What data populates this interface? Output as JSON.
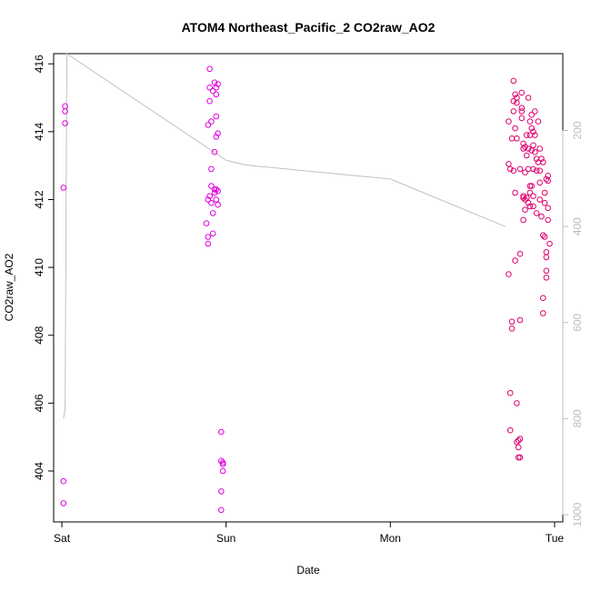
{
  "chart_data": {
    "type": "scatter",
    "title": "ATOM4 Northeast_Pacific_2 CO2raw_AO2",
    "xlabel": "Date",
    "ylabel": "CO2raw_AO2",
    "x_ticks": [
      "Sat",
      "Sun",
      "Mon",
      "Tue"
    ],
    "x_tick_values": [
      0,
      1,
      2,
      3
    ],
    "xlim": [
      -0.05,
      3.05
    ],
    "ylim": [
      402.5,
      416.3
    ],
    "y_ticks": [
      404,
      406,
      408,
      410,
      412,
      414,
      416
    ],
    "y2_ticks": [
      200,
      400,
      600,
      800,
      1000
    ],
    "y2lim": [
      1015,
      40
    ],
    "colors": {
      "points_early": "#e000e0",
      "points_late": "#e00070",
      "line": "#c0c0c0"
    },
    "series_points": [
      [
        0.01,
        403.05
      ],
      [
        0.01,
        403.7
      ],
      [
        0.01,
        412.35
      ],
      [
        0.02,
        414.25
      ],
      [
        0.02,
        414.6
      ],
      [
        0.02,
        414.75
      ],
      [
        0.88,
        411.3
      ],
      [
        0.89,
        410.7
      ],
      [
        0.89,
        410.9
      ],
      [
        0.89,
        412.0
      ],
      [
        0.89,
        414.2
      ],
      [
        0.9,
        414.9
      ],
      [
        0.9,
        415.3
      ],
      [
        0.9,
        415.85
      ],
      [
        0.9,
        412.1
      ],
      [
        0.91,
        414.3
      ],
      [
        0.91,
        412.9
      ],
      [
        0.91,
        412.4
      ],
      [
        0.91,
        411.9
      ],
      [
        0.92,
        411.6
      ],
      [
        0.92,
        411.0
      ],
      [
        0.92,
        415.2
      ],
      [
        0.93,
        412.2
      ],
      [
        0.93,
        413.4
      ],
      [
        0.93,
        415.45
      ],
      [
        0.93,
        412.3
      ],
      [
        0.94,
        415.3
      ],
      [
        0.94,
        415.1
      ],
      [
        0.94,
        413.85
      ],
      [
        0.94,
        412.3
      ],
      [
        0.94,
        412.0
      ],
      [
        0.94,
        414.45
      ],
      [
        0.95,
        412.25
      ],
      [
        0.95,
        413.95
      ],
      [
        0.95,
        415.4
      ],
      [
        0.95,
        411.85
      ],
      [
        0.97,
        405.15
      ],
      [
        0.97,
        404.3
      ],
      [
        0.97,
        403.4
      ],
      [
        0.97,
        402.85
      ],
      [
        0.98,
        404.2
      ],
      [
        0.98,
        404.0
      ],
      [
        0.98,
        404.25
      ],
      [
        2.72,
        409.8
      ],
      [
        2.72,
        413.05
      ],
      [
        2.72,
        414.3
      ],
      [
        2.73,
        412.9
      ],
      [
        2.73,
        406.3
      ],
      [
        2.73,
        405.2
      ],
      [
        2.74,
        408.2
      ],
      [
        2.74,
        408.4
      ],
      [
        2.74,
        413.8
      ],
      [
        2.75,
        412.85
      ],
      [
        2.75,
        414.6
      ],
      [
        2.75,
        414.9
      ],
      [
        2.75,
        415.5
      ],
      [
        2.76,
        414.1
      ],
      [
        2.76,
        415.1
      ],
      [
        2.76,
        412.2
      ],
      [
        2.76,
        410.2
      ],
      [
        2.77,
        415.0
      ],
      [
        2.77,
        414.85
      ],
      [
        2.77,
        413.8
      ],
      [
        2.77,
        406.0
      ],
      [
        2.77,
        404.85
      ],
      [
        2.78,
        404.4
      ],
      [
        2.78,
        404.7
      ],
      [
        2.78,
        404.9
      ],
      [
        2.79,
        404.4
      ],
      [
        2.79,
        404.95
      ],
      [
        2.79,
        412.9
      ],
      [
        2.79,
        410.4
      ],
      [
        2.79,
        408.45
      ],
      [
        2.8,
        415.15
      ],
      [
        2.8,
        414.7
      ],
      [
        2.8,
        414.6
      ],
      [
        2.8,
        414.4
      ],
      [
        2.81,
        413.65
      ],
      [
        2.81,
        413.5
      ],
      [
        2.81,
        412.1
      ],
      [
        2.81,
        412.05
      ],
      [
        2.81,
        411.4
      ],
      [
        2.82,
        413.55
      ],
      [
        2.82,
        412.8
      ],
      [
        2.82,
        412.0
      ],
      [
        2.82,
        411.7
      ],
      [
        2.83,
        413.3
      ],
      [
        2.83,
        413.9
      ],
      [
        2.83,
        412.05
      ],
      [
        2.84,
        411.9
      ],
      [
        2.84,
        412.9
      ],
      [
        2.84,
        413.5
      ],
      [
        2.84,
        415.0
      ],
      [
        2.85,
        414.3
      ],
      [
        2.85,
        413.9
      ],
      [
        2.85,
        412.4
      ],
      [
        2.85,
        412.2
      ],
      [
        2.85,
        411.8
      ],
      [
        2.86,
        412.4
      ],
      [
        2.86,
        413.45
      ],
      [
        2.86,
        414.1
      ],
      [
        2.86,
        414.5
      ],
      [
        2.87,
        414.0
      ],
      [
        2.87,
        413.6
      ],
      [
        2.87,
        412.9
      ],
      [
        2.87,
        412.1
      ],
      [
        2.87,
        411.8
      ],
      [
        2.88,
        414.6
      ],
      [
        2.88,
        413.9
      ],
      [
        2.88,
        413.4
      ],
      [
        2.89,
        412.85
      ],
      [
        2.89,
        411.6
      ],
      [
        2.89,
        413.2
      ],
      [
        2.9,
        414.3
      ],
      [
        2.9,
        413.1
      ],
      [
        2.91,
        412.5
      ],
      [
        2.91,
        412.0
      ],
      [
        2.91,
        413.5
      ],
      [
        2.91,
        412.85
      ],
      [
        2.92,
        413.2
      ],
      [
        2.92,
        411.5
      ],
      [
        2.93,
        410.95
      ],
      [
        2.93,
        409.1
      ],
      [
        2.93,
        408.65
      ],
      [
        2.93,
        413.1
      ],
      [
        2.94,
        412.2
      ],
      [
        2.94,
        411.9
      ],
      [
        2.94,
        410.9
      ],
      [
        2.95,
        410.3
      ],
      [
        2.95,
        410.45
      ],
      [
        2.95,
        409.9
      ],
      [
        2.95,
        409.7
      ],
      [
        2.95,
        412.6
      ],
      [
        2.96,
        412.55
      ],
      [
        2.96,
        412.7
      ],
      [
        2.96,
        411.4
      ],
      [
        2.96,
        411.75
      ],
      [
        2.97,
        410.7
      ]
    ],
    "pressure_line": [
      [
        0.01,
        800
      ],
      [
        0.02,
        780
      ],
      [
        0.03,
        40
      ],
      [
        0.03,
        40
      ],
      [
        1.0,
        262
      ],
      [
        1.12,
        272
      ],
      [
        2.0,
        301
      ],
      [
        2.7,
        400
      ],
      [
        2.7,
        400
      ]
    ]
  }
}
